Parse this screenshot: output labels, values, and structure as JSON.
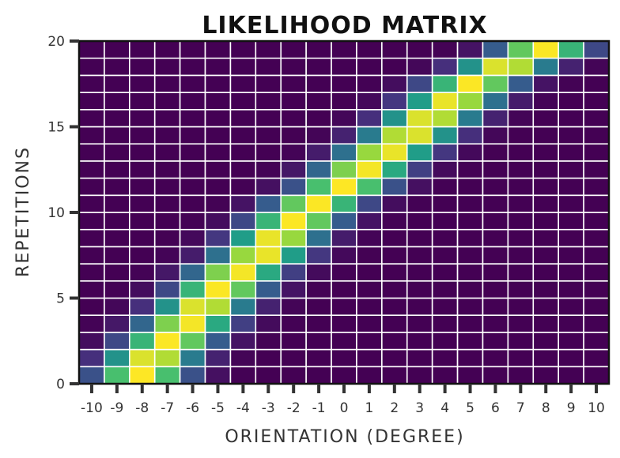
{
  "chart_data": {
    "type": "heatmap",
    "title": "LIKELIHOOD MATRIX",
    "xlabel": "ORIENTATION (DEGREE)",
    "ylabel": "REPETITIONS",
    "x_ticks": [
      "-10",
      "-9",
      "-8",
      "-7",
      "-6",
      "-5",
      "-4",
      "-3",
      "-2",
      "-1",
      "0",
      "1",
      "2",
      "3",
      "4",
      "5",
      "6",
      "7",
      "8",
      "9",
      "10"
    ],
    "y_ticks": [
      "0",
      "5",
      "10",
      "15",
      "20"
    ],
    "ylim": [
      0,
      20
    ],
    "colormap": [
      "#440154",
      "#46327e",
      "#365c8d",
      "#277f8e",
      "#1fa187",
      "#4ac16d",
      "#a0da39",
      "#fde725"
    ],
    "grid": true,
    "rows": 20,
    "cols": 21,
    "peak_orientation_by_row": [
      -8.0,
      -7.6,
      -6.9,
      -6.2,
      -5.6,
      -4.9,
      -4.2,
      -3.3,
      -2.7,
      -1.9,
      -1.1,
      0.0,
      0.8,
      1.7,
      2.6,
      3.4,
      4.3,
      5.1,
      6.4,
      7.9
    ],
    "spread": 1.2
  }
}
